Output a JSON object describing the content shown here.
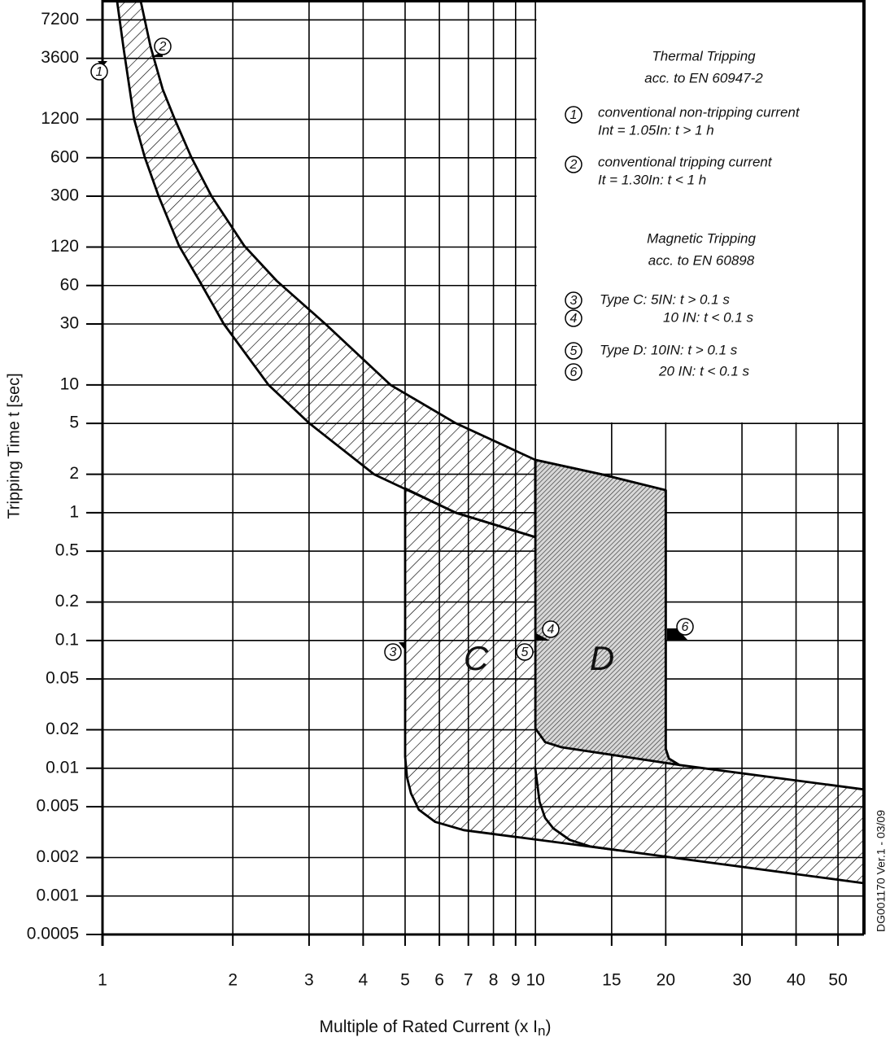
{
  "chart_data": {
    "type": "area",
    "y_label": "Tripping Time t [sec]",
    "x_label": {
      "text": "Multiple of Rated Current (x I",
      "subscript": "n",
      "suffix": ")"
    },
    "side_note": "DG001170 Ver.1 - 03/09",
    "log_x": true,
    "log_y": true,
    "grid": true,
    "xlim": [
      1,
      57.4
    ],
    "ylim": [
      0.0005,
      10000
    ],
    "xticks": [
      1,
      2,
      3,
      4,
      5,
      6,
      7,
      8,
      9,
      10,
      15,
      20,
      30,
      40,
      50
    ],
    "yticks": [
      0.0005,
      0.001,
      0.002,
      0.005,
      0.01,
      0.02,
      0.05,
      0.1,
      0.2,
      0.5,
      1,
      2,
      5,
      10,
      30,
      60,
      120,
      300,
      600,
      1200,
      3600,
      7200
    ],
    "series": [
      {
        "color": "#000000",
        "fill": "hatch",
        "x": [
          1.081,
          1.119,
          1.184,
          1.252,
          1.348,
          1.502,
          1.674,
          1.906,
          2.418,
          3.002,
          4.245,
          6.545,
          10,
          10,
          6.545,
          4.629,
          3.273,
          2.525,
          2.124,
          1.786,
          1.603,
          1.47,
          1.378,
          1.291,
          1.226
        ],
        "values": [
          10000,
          4273,
          1193,
          607,
          300,
          123,
          65.3,
          30,
          10,
          5.02,
          1.99,
          1.0,
          0.644,
          2.59,
          5.02,
          10,
          30,
          65.3,
          123,
          300,
          607,
          1193,
          2052,
          4465,
          10000
        ]
      },
      {
        "color": "#000000",
        "fill": "hatch",
        "x": [
          5.0,
          6.545,
          10,
          10,
          14.26,
          20,
          20,
          20.34,
          21.5,
          57.4,
          57.4,
          15.55,
          6.83,
          5.87,
          5.38,
          5.16,
          5.05,
          5.0
        ],
        "values": [
          1.55,
          1.0,
          0.644,
          2.59,
          1.99,
          1.5,
          0.0142,
          0.0119,
          0.0106,
          0.00683,
          0.00126,
          0.00228,
          0.00328,
          0.0038,
          0.00473,
          0.00635,
          0.0085,
          0.0123
        ]
      },
      {
        "color": "#000000",
        "fill": "dense-hatch",
        "x": [
          10,
          14.26,
          20,
          20,
          20.34,
          21.5,
          11.49,
          10.53,
          10
        ],
        "values": [
          2.59,
          1.99,
          1.5,
          0.0142,
          0.0119,
          0.0106,
          0.0146,
          0.016,
          0.0205
        ]
      },
      {
        "color": "#000000",
        "fill": "none",
        "x": [
          10,
          10.22,
          10.53,
          11.0,
          12.0,
          13.36,
          15.55
        ],
        "values": [
          0.00986,
          0.00548,
          0.00408,
          0.00338,
          0.00275,
          0.00245,
          0.00228
        ]
      }
    ],
    "annotations": [
      "1",
      "2",
      "3",
      "4",
      "5",
      "6"
    ],
    "region_labels": [
      "C",
      "D"
    ],
    "notes": {
      "thermal_title": "Thermal Tripping",
      "thermal_standard": "acc. to EN 60947-2",
      "thermal_items": [
        {
          "num": "1",
          "lines": [
            "conventional non-tripping current",
            "Int  = 1.05In: t > 1 h"
          ]
        },
        {
          "num": "2",
          "lines": [
            "conventional tripping current",
            "It  = 1.30In: t < 1 h"
          ]
        }
      ],
      "magnetic_title": "Magnetic Tripping",
      "magnetic_standard": "acc. to EN 60898",
      "magnetic_items": [
        {
          "num": "3",
          "text": "Type C:   5IN: t > 0.1 s"
        },
        {
          "num": "4",
          "text": "10 IN: t < 0.1 s"
        },
        {
          "num": "5",
          "text": "Type D: 10IN: t > 0.1 s"
        },
        {
          "num": "6",
          "text": "20 IN: t < 0.1 s"
        }
      ]
    }
  }
}
